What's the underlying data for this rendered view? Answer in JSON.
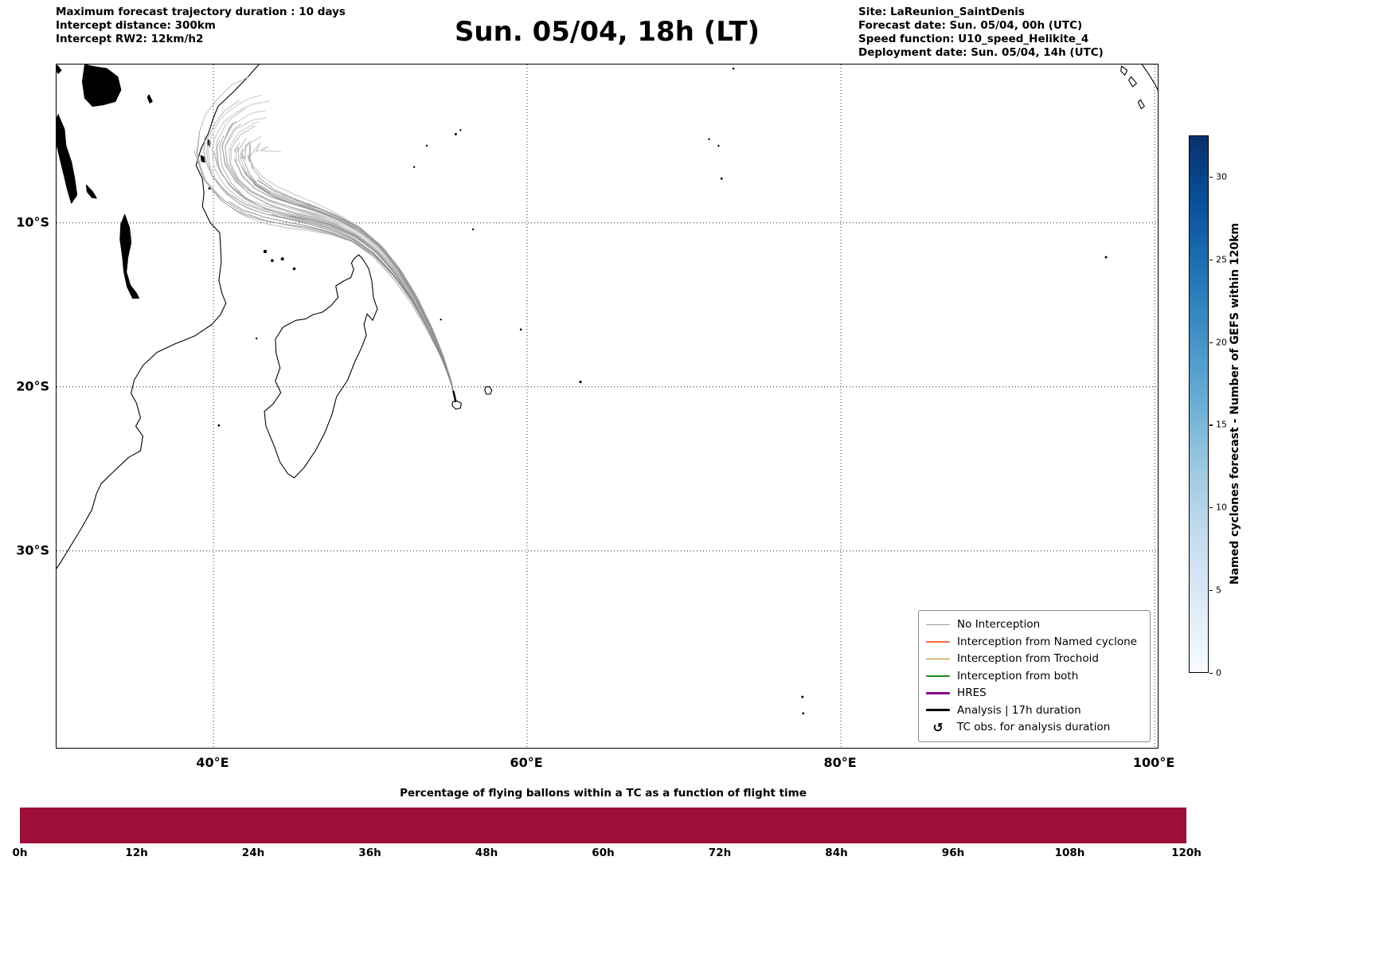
{
  "header": {
    "left_lines": [
      "Maximum forecast trajectory duration : 10 days",
      "Intercept distance: 300km",
      "Intercept RW2: 12km/h2"
    ],
    "title": "Sun. 05/04, 18h (LT)",
    "right_lines": [
      "Site: LaReunion_SaintDenis",
      "Forecast date: Sun. 05/04, 00h (UTC)",
      "Speed function: U10_speed_Helikite_4",
      "Deployment date: Sun. 05/04, 14h (UTC)"
    ]
  },
  "legend": {
    "items": [
      {
        "label": "No Interception",
        "color": "#9a9a9a",
        "lw": 1.5
      },
      {
        "label": "Interception from Named cyclone",
        "color": "#ff6a3d",
        "lw": 1.5
      },
      {
        "label": "Interception from Trochoid",
        "color": "#b8860b",
        "lw": 1.5
      },
      {
        "label": "Interception from both",
        "color": "#1e8a1e",
        "lw": 1.5
      },
      {
        "label": "HRES",
        "color": "#8b008b",
        "lw": 3.5
      },
      {
        "label": "Analysis | 17h duration",
        "color": "#000000",
        "lw": 3
      },
      {
        "label": "TC obs. for analysis duration",
        "symbol": "↺",
        "color": "#000000"
      }
    ]
  },
  "colorbar": {
    "label": "Named cyclones forecast - Number of GEFS within 120km",
    "ticks": [
      0,
      5,
      10,
      15,
      20,
      25,
      30
    ],
    "vmin": 0,
    "vmax": 32.5,
    "colormap": "Blues",
    "colormap_stops": [
      "#f7fbff",
      "#c6dbef",
      "#6baed6",
      "#2171b5",
      "#08306b"
    ]
  },
  "chart_data": [
    {
      "type": "line",
      "name": "gefs-balloon-trajectory-map",
      "grid": true,
      "x_axis": {
        "range": [
          30.0,
          100.3
        ],
        "ticks": [
          40,
          60,
          80,
          100
        ],
        "tick_labels": [
          "40°E",
          "60°E",
          "80°E",
          "100°E"
        ]
      },
      "y_axis": {
        "range": [
          -42.1,
          -0.35
        ],
        "ticks": [
          -10,
          -20,
          -30
        ],
        "tick_labels": [
          "10°S",
          "20°S",
          "30°S"
        ]
      },
      "launch_site_lonlat": [
        55.45,
        -20.93
      ],
      "n_ensemble_members": 31,
      "series_status": "No Interception (all members gray)"
    },
    {
      "type": "bar",
      "title": "Percentage of flying ballons within a TC as a function of flight time",
      "x_tick_labels": [
        "0h",
        "12h",
        "24h",
        "36h",
        "48h",
        "60h",
        "72h",
        "84h",
        "96h",
        "108h",
        "120h"
      ],
      "x_hours": [
        0,
        12,
        24,
        36,
        48,
        60,
        72,
        84,
        96,
        108,
        120
      ],
      "values_percent": [
        100,
        100,
        100,
        100,
        100,
        100,
        100,
        100,
        100,
        100,
        100
      ],
      "bar_color": "#9e1039",
      "ylim": [
        0,
        100
      ]
    }
  ],
  "trajectories": {
    "n_members": 31,
    "seed": 7,
    "lateral_spread_deg": 2.2,
    "base_path_lonlat": [
      [
        55.45,
        -20.93
      ],
      [
        55.15,
        -19.7
      ],
      [
        54.6,
        -18.2
      ],
      [
        53.8,
        -16.5
      ],
      [
        52.8,
        -14.7
      ],
      [
        51.7,
        -13.1
      ],
      [
        50.45,
        -11.7
      ],
      [
        49.1,
        -10.7
      ],
      [
        47.7,
        -10.05
      ],
      [
        46.3,
        -9.6
      ],
      [
        44.9,
        -9.25
      ],
      [
        43.5,
        -8.85
      ],
      [
        42.3,
        -8.3
      ],
      [
        41.35,
        -7.5
      ],
      [
        40.7,
        -6.5
      ],
      [
        40.55,
        -5.3
      ],
      [
        41.2,
        -4.1
      ],
      [
        42.4,
        -3.3
      ],
      [
        43.8,
        -3.0
      ]
    ],
    "analysis_track_lonlat": [
      [
        55.45,
        -20.93
      ],
      [
        55.3,
        -20.25
      ]
    ],
    "analysis_color": "#000000"
  },
  "geo": {
    "outlines": [
      {
        "name": "africa-east-coast",
        "closed": false,
        "points": [
          [
            42.9,
            -0.35
          ],
          [
            42.3,
            -1.0
          ],
          [
            41.3,
            -2.0
          ],
          [
            40.3,
            -2.9
          ],
          [
            40.0,
            -3.6
          ],
          [
            39.7,
            -4.5
          ],
          [
            39.2,
            -5.5
          ],
          [
            38.9,
            -6.5
          ],
          [
            39.3,
            -7.3
          ],
          [
            39.4,
            -8.2
          ],
          [
            39.3,
            -9.0
          ],
          [
            39.8,
            -10.0
          ],
          [
            40.4,
            -10.6
          ],
          [
            40.45,
            -11.4
          ],
          [
            40.5,
            -12.4
          ],
          [
            40.35,
            -13.5
          ],
          [
            40.55,
            -14.3
          ],
          [
            40.8,
            -14.9
          ],
          [
            40.45,
            -15.6
          ],
          [
            39.9,
            -16.2
          ],
          [
            38.8,
            -16.9
          ],
          [
            37.5,
            -17.4
          ],
          [
            36.4,
            -17.9
          ],
          [
            35.5,
            -18.7
          ],
          [
            34.95,
            -19.6
          ],
          [
            34.75,
            -20.4
          ],
          [
            35.1,
            -21.0
          ],
          [
            35.35,
            -21.9
          ],
          [
            35.05,
            -22.4
          ],
          [
            35.5,
            -23.0
          ],
          [
            35.35,
            -23.9
          ],
          [
            34.6,
            -24.3
          ],
          [
            33.6,
            -25.2
          ],
          [
            32.85,
            -25.9
          ],
          [
            32.55,
            -26.5
          ],
          [
            32.25,
            -27.5
          ],
          [
            31.6,
            -28.6
          ],
          [
            30.9,
            -29.7
          ],
          [
            30.2,
            -30.8
          ],
          [
            29.9,
            -31.2
          ]
        ]
      },
      {
        "name": "madagascar",
        "closed": true,
        "points": [
          [
            49.27,
            -11.95
          ],
          [
            49.55,
            -12.25
          ],
          [
            49.9,
            -12.8
          ],
          [
            50.1,
            -13.55
          ],
          [
            50.2,
            -14.55
          ],
          [
            50.45,
            -15.25
          ],
          [
            50.15,
            -15.95
          ],
          [
            49.8,
            -15.55
          ],
          [
            49.6,
            -16.2
          ],
          [
            49.75,
            -16.85
          ],
          [
            49.45,
            -17.6
          ],
          [
            49.0,
            -18.5
          ],
          [
            48.55,
            -19.6
          ],
          [
            47.85,
            -20.6
          ],
          [
            47.55,
            -21.7
          ],
          [
            47.1,
            -22.8
          ],
          [
            46.5,
            -23.9
          ],
          [
            45.8,
            -24.9
          ],
          [
            45.15,
            -25.55
          ],
          [
            44.75,
            -25.3
          ],
          [
            44.25,
            -24.6
          ],
          [
            43.85,
            -23.55
          ],
          [
            43.35,
            -22.4
          ],
          [
            43.25,
            -21.5
          ],
          [
            43.8,
            -21.05
          ],
          [
            44.3,
            -20.35
          ],
          [
            43.95,
            -19.65
          ],
          [
            44.25,
            -18.85
          ],
          [
            44.0,
            -17.95
          ],
          [
            43.95,
            -17.1
          ],
          [
            44.45,
            -16.35
          ],
          [
            45.25,
            -15.95
          ],
          [
            45.9,
            -15.85
          ],
          [
            46.35,
            -15.6
          ],
          [
            46.95,
            -15.45
          ],
          [
            47.5,
            -15.05
          ],
          [
            47.95,
            -14.55
          ],
          [
            47.8,
            -13.85
          ],
          [
            48.3,
            -13.55
          ],
          [
            48.75,
            -13.35
          ],
          [
            48.95,
            -12.85
          ],
          [
            48.8,
            -12.45
          ],
          [
            49.0,
            -12.15
          ]
        ]
      },
      {
        "name": "lake-victoria",
        "closed": true,
        "fill": "#000",
        "points": [
          [
            31.8,
            -0.35
          ],
          [
            32.5,
            -0.5
          ],
          [
            33.2,
            -0.6
          ],
          [
            33.9,
            -1.1
          ],
          [
            34.1,
            -1.9
          ],
          [
            33.75,
            -2.6
          ],
          [
            33.0,
            -2.8
          ],
          [
            32.3,
            -2.9
          ],
          [
            31.8,
            -2.4
          ],
          [
            31.65,
            -1.4
          ]
        ]
      },
      {
        "name": "lake-tanganyika",
        "closed": true,
        "fill": "#000",
        "points": [
          [
            30.1,
            -3.4
          ],
          [
            30.5,
            -4.3
          ],
          [
            30.6,
            -5.3
          ],
          [
            30.95,
            -6.3
          ],
          [
            31.15,
            -7.3
          ],
          [
            31.3,
            -8.3
          ],
          [
            30.95,
            -8.8
          ],
          [
            30.7,
            -8.0
          ],
          [
            30.45,
            -7.0
          ],
          [
            30.2,
            -6.0
          ],
          [
            29.95,
            -5.0
          ],
          [
            29.85,
            -4.1
          ]
        ]
      },
      {
        "name": "lake-malawi",
        "closed": true,
        "fill": "#000",
        "points": [
          [
            34.35,
            -9.5
          ],
          [
            34.65,
            -10.3
          ],
          [
            34.75,
            -11.2
          ],
          [
            34.55,
            -12.1
          ],
          [
            34.45,
            -13.0
          ],
          [
            34.7,
            -13.8
          ],
          [
            35.1,
            -14.3
          ],
          [
            35.25,
            -14.6
          ],
          [
            34.85,
            -14.6
          ],
          [
            34.5,
            -13.9
          ],
          [
            34.3,
            -13.0
          ],
          [
            34.2,
            -12.0
          ],
          [
            34.05,
            -11.0
          ],
          [
            34.1,
            -10.1
          ]
        ]
      },
      {
        "name": "lake-rukwa",
        "closed": true,
        "fill": "#000",
        "points": [
          [
            31.9,
            -7.7
          ],
          [
            32.3,
            -8.1
          ],
          [
            32.55,
            -8.5
          ],
          [
            32.25,
            -8.45
          ],
          [
            31.95,
            -8.1
          ]
        ]
      },
      {
        "name": "lake-edward-fragment",
        "closed": true,
        "fill": "#000",
        "points": [
          [
            30.05,
            -0.4
          ],
          [
            30.3,
            -0.7
          ],
          [
            30.1,
            -0.9
          ],
          [
            29.95,
            -0.6
          ]
        ]
      },
      {
        "name": "lake-eyasi",
        "closed": true,
        "fill": "#000",
        "points": [
          [
            35.9,
            -2.2
          ],
          [
            36.1,
            -2.6
          ],
          [
            35.95,
            -2.7
          ],
          [
            35.8,
            -2.35
          ]
        ]
      },
      {
        "name": "zanzibar",
        "closed": true,
        "fill": "#000",
        "points": [
          [
            39.2,
            -5.9
          ],
          [
            39.4,
            -6.0
          ],
          [
            39.45,
            -6.3
          ],
          [
            39.25,
            -6.25
          ]
        ]
      },
      {
        "name": "pemba",
        "closed": true,
        "fill": "#000",
        "points": [
          [
            39.65,
            -4.9
          ],
          [
            39.8,
            -5.1
          ],
          [
            39.75,
            -5.35
          ],
          [
            39.6,
            -5.15
          ]
        ]
      },
      {
        "name": "reunion",
        "closed": true,
        "points": [
          [
            55.25,
            -20.9
          ],
          [
            55.55,
            -20.87
          ],
          [
            55.8,
            -21.0
          ],
          [
            55.75,
            -21.3
          ],
          [
            55.45,
            -21.35
          ],
          [
            55.22,
            -21.15
          ]
        ]
      },
      {
        "name": "mauritius",
        "closed": true,
        "points": [
          [
            57.35,
            -20.0
          ],
          [
            57.6,
            -19.99
          ],
          [
            57.75,
            -20.2
          ],
          [
            57.65,
            -20.45
          ],
          [
            57.4,
            -20.45
          ],
          [
            57.3,
            -20.2
          ]
        ]
      },
      {
        "name": "sumatra-coast",
        "closed": false,
        "points": [
          [
            99.2,
            -0.35
          ],
          [
            99.6,
            -0.9
          ],
          [
            100.05,
            -1.6
          ],
          [
            100.3,
            -2.1
          ]
        ]
      },
      {
        "name": "nias",
        "closed": true,
        "points": [
          [
            97.9,
            -0.45
          ],
          [
            98.25,
            -0.7
          ],
          [
            98.1,
            -1.0
          ],
          [
            97.85,
            -0.75
          ]
        ]
      },
      {
        "name": "mentawai",
        "closed": true,
        "points": [
          [
            98.5,
            -1.1
          ],
          [
            98.85,
            -1.5
          ],
          [
            98.6,
            -1.7
          ],
          [
            98.35,
            -1.3
          ]
        ]
      },
      {
        "name": "siberut",
        "closed": true,
        "points": [
          [
            99.1,
            -2.5
          ],
          [
            99.35,
            -2.9
          ],
          [
            99.15,
            -3.05
          ],
          [
            98.95,
            -2.65
          ]
        ]
      }
    ],
    "island_dots": [
      [
        43.3,
        -11.75,
        2.2
      ],
      [
        43.75,
        -12.3,
        1.8
      ],
      [
        44.4,
        -12.2,
        2.0
      ],
      [
        45.15,
        -12.8,
        1.8
      ],
      [
        39.75,
        -7.9,
        1.5
      ],
      [
        55.45,
        -4.6,
        1.5
      ],
      [
        55.75,
        -4.35,
        1.2
      ],
      [
        53.6,
        -5.3,
        1.2
      ],
      [
        52.8,
        -6.6,
        1.2
      ],
      [
        56.55,
        -10.4,
        1.2
      ],
      [
        54.5,
        -15.9,
        1.2
      ],
      [
        59.6,
        -16.5,
        1.3
      ],
      [
        63.4,
        -19.7,
        1.6
      ],
      [
        71.6,
        -4.9,
        1.2
      ],
      [
        72.2,
        -5.3,
        1.2
      ],
      [
        72.4,
        -7.3,
        1.4
      ],
      [
        73.15,
        -0.6,
        1.3
      ],
      [
        96.9,
        -12.1,
        1.5
      ],
      [
        77.55,
        -38.9,
        1.5
      ],
      [
        77.6,
        -39.9,
        1.3
      ],
      [
        40.35,
        -22.35,
        1.4
      ],
      [
        42.75,
        -17.05,
        1.2
      ]
    ]
  }
}
